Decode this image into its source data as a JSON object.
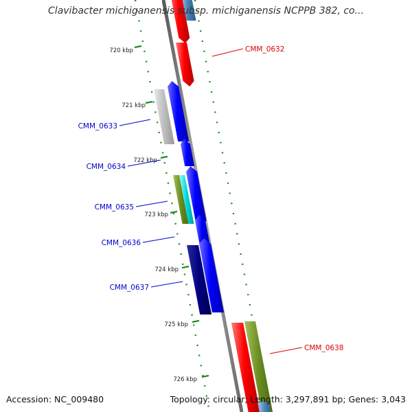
{
  "title": "Clavibacter michiganensis subsp. michiganensis NCPPB 382, co...",
  "footer": {
    "accession": "Accession: NC_009480",
    "summary": "Topology: circular; Length: 3,297,891 bp; Genes: 3,043"
  },
  "colors": {
    "backbone": "#888888",
    "forward_gene": "#0000ee",
    "reverse_gene": "#ee0000",
    "label_blue": "#0000cc",
    "label_red": "#dd0000",
    "gc_track": "#228b22"
  },
  "ticks": [
    {
      "label": "720 kbp"
    },
    {
      "label": "721 kbp"
    },
    {
      "label": "722 kbp"
    },
    {
      "label": "723 kbp"
    },
    {
      "label": "724 kbp"
    },
    {
      "label": "725 kbp"
    },
    {
      "label": "726 kbp"
    }
  ],
  "gene_labels": [
    {
      "id": "CMM_0632",
      "color": "#dd0000"
    },
    {
      "id": "CMM_0633",
      "color": "#0000cc"
    },
    {
      "id": "CMM_0634",
      "color": "#0000cc"
    },
    {
      "id": "CMM_0635",
      "color": "#0000cc"
    },
    {
      "id": "CMM_0636",
      "color": "#0000cc"
    },
    {
      "id": "CMM_0637",
      "color": "#0000cc"
    },
    {
      "id": "CMM_0638",
      "color": "#dd0000"
    }
  ]
}
